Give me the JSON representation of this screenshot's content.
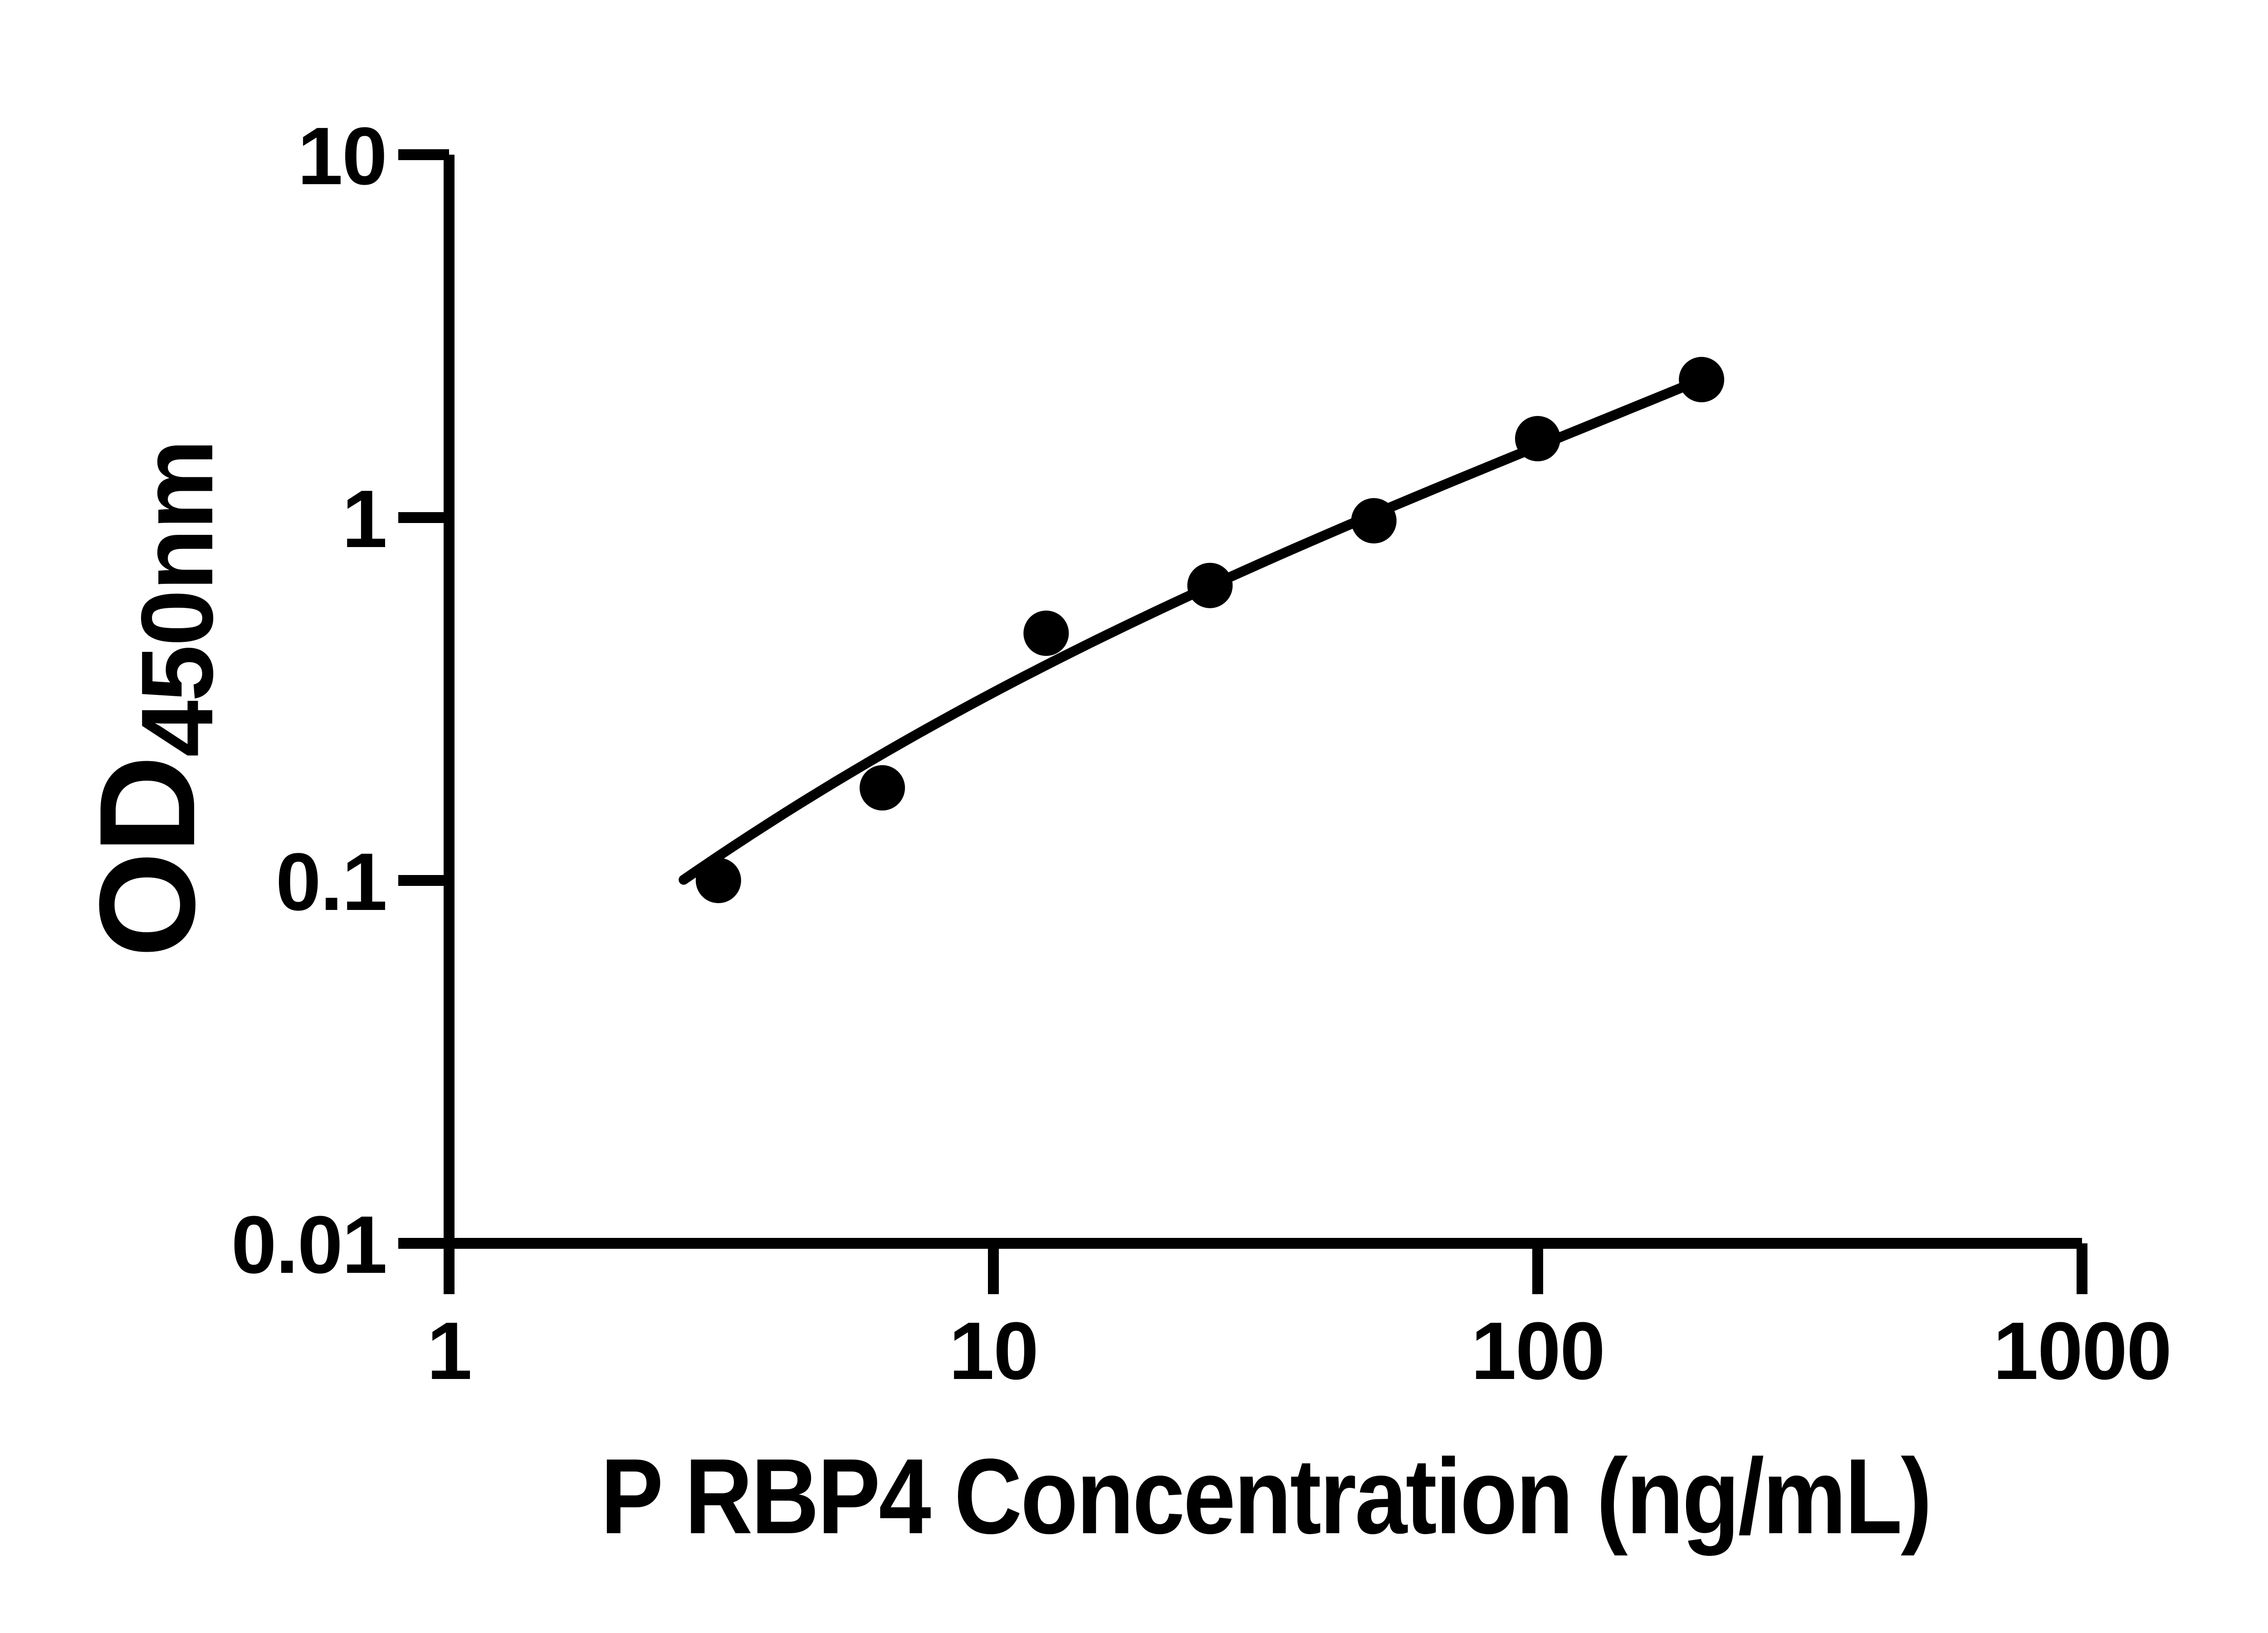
{
  "figure": {
    "kind": "ELISA standard curve plot",
    "background_color": "#ffffff",
    "foreground_color": "#000000"
  },
  "chart_data": {
    "type": "scatter",
    "title": "",
    "xlabel": "P RBP4 Concentration (ng/mL)",
    "ylabel": "OD450nm",
    "ylabel_main": "OD",
    "ylabel_sub": "450nm",
    "x_scale": "log10",
    "y_scale": "log10",
    "xlim": [
      1,
      1000
    ],
    "ylim": [
      0.01,
      10
    ],
    "x_ticks": [
      1,
      10,
      100,
      1000
    ],
    "x_tick_labels": [
      "1",
      "10",
      "100",
      "1000"
    ],
    "y_ticks": [
      10,
      1,
      0.1,
      0.01
    ],
    "y_tick_labels": [
      "10",
      "1",
      "0.1",
      "0.01"
    ],
    "grid": false,
    "legend": "none",
    "marker": "filled-circle",
    "marker_color": "#000000",
    "line_color": "#000000",
    "points": [
      {
        "conc": 3.125,
        "od": 0.1
      },
      {
        "conc": 6.25,
        "od": 0.18
      },
      {
        "conc": 12.5,
        "od": 0.48
      },
      {
        "conc": 25,
        "od": 0.65
      },
      {
        "conc": 50,
        "od": 0.98
      },
      {
        "conc": 100,
        "od": 1.65
      },
      {
        "conc": 200,
        "od": 2.4
      }
    ],
    "fit_curve": {
      "model": "cubic in log10(x) vs log10(y)",
      "t_center": 1.277,
      "coeffs": [
        -0.2736,
        0.7137,
        -0.1254,
        0.0512
      ],
      "log_x_start": 0.431,
      "log_x_end": 2.301
    }
  }
}
